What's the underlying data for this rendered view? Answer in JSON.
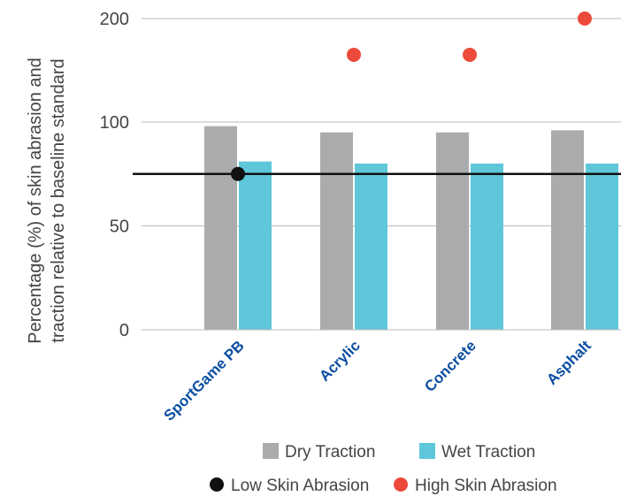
{
  "chart_data": {
    "type": "bar",
    "ylabel": "Percentage (%) of skin abrasion and traction relative to baseline standard",
    "ylabel_lines": [
      "Percentage (%) of skin abrasion and",
      "traction relative to baseline standard"
    ],
    "xlabel": "",
    "categories": [
      "SportGame PB",
      "Acrylic",
      "Concrete",
      "Asphalt"
    ],
    "y_ticks": [
      0,
      50,
      100,
      200
    ],
    "y_tick_labels": [
      "0",
      "50",
      "100",
      "200"
    ],
    "grid": true,
    "legend_position": "bottom",
    "series": [
      {
        "name": "Dry Traction",
        "kind": "bar",
        "color": "#aaabad",
        "values": [
          98,
          95,
          95,
          96
        ]
      },
      {
        "name": "Wet Traction",
        "kind": "bar",
        "color": "#5ec7d9",
        "values": [
          81,
          80,
          80,
          80
        ]
      },
      {
        "name": "Low Skin Abrasion",
        "kind": "point",
        "color": "#111111",
        "values": [
          75,
          null,
          null,
          null
        ]
      },
      {
        "name": "High Skin Abrasion",
        "kind": "point",
        "color": "#ec4a3a",
        "values": [
          null,
          165,
          165,
          200
        ]
      }
    ],
    "reference_line": {
      "value": 75,
      "color": "#111111"
    }
  }
}
